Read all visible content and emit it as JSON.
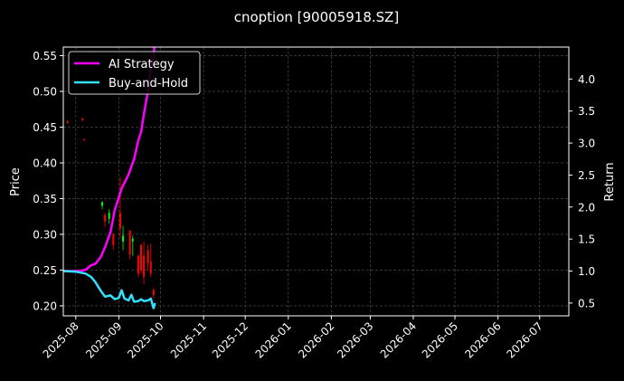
{
  "chart_data": {
    "type": "line",
    "title": "cnoption [90005918.SZ]",
    "ylabel_left": "Price",
    "ylabel_right": "Return",
    "x_range": [
      "2025-07-23",
      "2026-07-22"
    ],
    "y_left_range": [
      0.186,
      0.562
    ],
    "y_right_range": [
      0.3,
      4.5
    ],
    "x_ticks": [
      "2025-08",
      "2025-09",
      "2025-10",
      "2025-11",
      "2025-12",
      "2026-01",
      "2026-02",
      "2026-03",
      "2026-04",
      "2026-05",
      "2026-06",
      "2026-07"
    ],
    "x_tick_dates": [
      "2025-08-01",
      "2025-09-01",
      "2025-10-01",
      "2025-11-01",
      "2025-12-01",
      "2026-01-01",
      "2026-02-01",
      "2026-03-01",
      "2026-04-01",
      "2026-05-01",
      "2026-06-01",
      "2026-07-01"
    ],
    "y_left_ticks": [
      "0.20",
      "0.25",
      "0.30",
      "0.35",
      "0.40",
      "0.45",
      "0.50",
      "0.55"
    ],
    "y_left_tick_values": [
      0.2,
      0.25,
      0.3,
      0.35,
      0.4,
      0.45,
      0.5,
      0.55
    ],
    "y_right_ticks": [
      "0.5",
      "1.0",
      "1.5",
      "2.0",
      "2.5",
      "3.0",
      "3.5",
      "4.0"
    ],
    "y_right_tick_values": [
      0.5,
      1.0,
      1.5,
      2.0,
      2.5,
      3.0,
      3.5,
      4.0
    ],
    "grid": true,
    "legend_position": "top-left",
    "legend": [
      "AI Strategy",
      "Buy-and-Hold"
    ],
    "series": [
      {
        "name": "AI Strategy",
        "axis": "right",
        "color": "#ff00ff",
        "x": [
          "2025-07-23",
          "2025-07-28",
          "2025-08-04",
          "2025-08-08",
          "2025-08-12",
          "2025-08-15",
          "2025-08-19",
          "2025-08-22",
          "2025-08-26",
          "2025-08-29",
          "2025-09-03",
          "2025-09-08",
          "2025-09-12",
          "2025-09-15",
          "2025-09-17",
          "2025-09-19",
          "2025-09-22",
          "2025-09-24",
          "2025-09-26",
          "2025-09-27"
        ],
        "y": [
          1.0,
          1.0,
          1.0,
          1.02,
          1.09,
          1.11,
          1.22,
          1.37,
          1.61,
          1.95,
          2.29,
          2.51,
          2.75,
          3.04,
          3.17,
          3.45,
          3.82,
          4.17,
          4.36,
          4.62
        ]
      },
      {
        "name": "Buy-and-Hold",
        "axis": "right",
        "color": "#33e0ff",
        "x": [
          "2025-07-23",
          "2025-08-01",
          "2025-08-08",
          "2025-08-12",
          "2025-08-15",
          "2025-08-19",
          "2025-08-22",
          "2025-08-26",
          "2025-08-29",
          "2025-09-01",
          "2025-09-03",
          "2025-09-05",
          "2025-09-08",
          "2025-09-10",
          "2025-09-12",
          "2025-09-15",
          "2025-09-17",
          "2025-09-19",
          "2025-09-22",
          "2025-09-24",
          "2025-09-26",
          "2025-09-27"
        ],
        "y": [
          1.0,
          0.99,
          0.96,
          0.91,
          0.83,
          0.69,
          0.6,
          0.62,
          0.56,
          0.58,
          0.7,
          0.57,
          0.54,
          0.63,
          0.52,
          0.53,
          0.56,
          0.53,
          0.54,
          0.57,
          0.42,
          0.5
        ]
      }
    ],
    "candles": {
      "axis": "left",
      "up_color": "#00ff00",
      "down_color": "#ff0000",
      "items": [
        {
          "date": "2025-07-26",
          "open": 0.458,
          "high": 0.46,
          "low": 0.455,
          "close": 0.456
        },
        {
          "date": "2025-08-06",
          "open": 0.462,
          "high": 0.463,
          "low": 0.459,
          "close": 0.46
        },
        {
          "date": "2025-08-07",
          "open": 0.433,
          "high": 0.434,
          "low": 0.431,
          "close": 0.432
        },
        {
          "date": "2025-08-20",
          "open": 0.34,
          "high": 0.346,
          "low": 0.335,
          "close": 0.345
        },
        {
          "date": "2025-08-22",
          "open": 0.327,
          "high": 0.33,
          "low": 0.31,
          "close": 0.318
        },
        {
          "date": "2025-08-25",
          "open": 0.322,
          "high": 0.335,
          "low": 0.315,
          "close": 0.33
        },
        {
          "date": "2025-08-28",
          "open": 0.3,
          "high": 0.302,
          "low": 0.278,
          "close": 0.285
        },
        {
          "date": "2025-09-02",
          "open": 0.33,
          "high": 0.38,
          "low": 0.295,
          "close": 0.308
        },
        {
          "date": "2025-09-04",
          "open": 0.29,
          "high": 0.312,
          "low": 0.278,
          "close": 0.298
        },
        {
          "date": "2025-09-09",
          "open": 0.305,
          "high": 0.306,
          "low": 0.265,
          "close": 0.272
        },
        {
          "date": "2025-09-11",
          "open": 0.29,
          "high": 0.298,
          "low": 0.27,
          "close": 0.294
        },
        {
          "date": "2025-09-15",
          "open": 0.27,
          "high": 0.272,
          "low": 0.24,
          "close": 0.245
        },
        {
          "date": "2025-09-17",
          "open": 0.285,
          "high": 0.287,
          "low": 0.245,
          "close": 0.25
        },
        {
          "date": "2025-09-19",
          "open": 0.27,
          "high": 0.29,
          "low": 0.23,
          "close": 0.24
        },
        {
          "date": "2025-09-22",
          "open": 0.278,
          "high": 0.285,
          "low": 0.25,
          "close": 0.26
        },
        {
          "date": "2025-09-24",
          "open": 0.262,
          "high": 0.287,
          "low": 0.24,
          "close": 0.245
        },
        {
          "date": "2025-09-26",
          "open": 0.222,
          "high": 0.225,
          "low": 0.21,
          "close": 0.215
        }
      ]
    }
  }
}
